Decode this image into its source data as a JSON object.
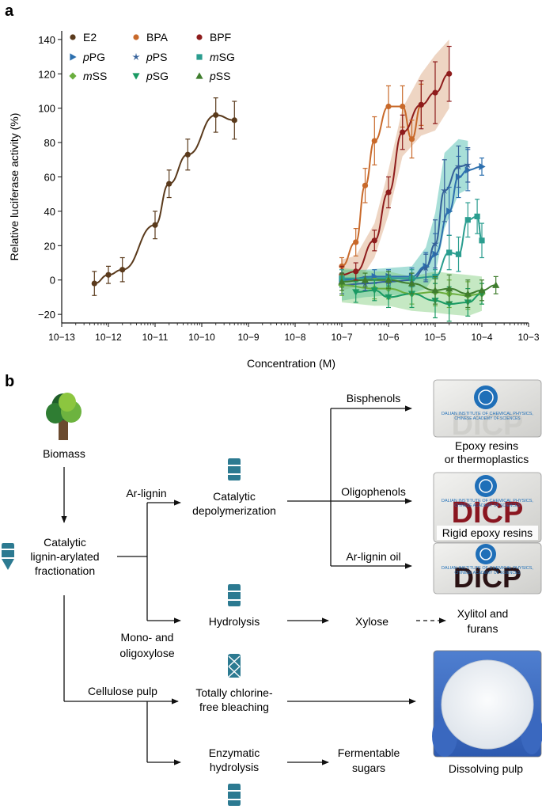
{
  "panel_a_label": "a",
  "panel_b_label": "b",
  "chart_data": {
    "type": "scatter",
    "xscale": "log",
    "xlabel": "Concentration (M)",
    "ylabel": "Relative luciferase activity (%)",
    "xlim_exp": [
      -13,
      -3
    ],
    "ylim": [
      -25,
      145
    ],
    "yticks": [
      -20,
      0,
      20,
      40,
      60,
      80,
      100,
      120,
      140
    ],
    "xtick_labels": [
      "10−13",
      "10−12",
      "10−11",
      "10−10",
      "10−9",
      "10−8",
      "10−7",
      "10−6",
      "10−5",
      "10−4",
      "10−3"
    ],
    "legend_position": "top-left",
    "series": [
      {
        "name": "E2",
        "marker": "circle",
        "color": "#5a3a1c",
        "x_log": [
          -12.3,
          -12.0,
          -11.7,
          -11.0,
          -10.7,
          -10.3,
          -9.7,
          -9.3
        ],
        "y": [
          -2,
          3,
          6,
          32,
          56,
          73,
          96,
          93
        ],
        "err": [
          7,
          5,
          7,
          8,
          8,
          9,
          10,
          11
        ]
      },
      {
        "name": "BPA",
        "marker": "circle",
        "color": "#c8692a",
        "x_log": [
          -7.0,
          -6.7,
          -6.5,
          -6.3,
          -6.0,
          -5.7,
          -5.5,
          -5.3
        ],
        "y": [
          8,
          22,
          55,
          81,
          101,
          101,
          82,
          102
        ],
        "err": [
          5,
          8,
          10,
          14,
          12,
          12,
          11,
          12
        ]
      },
      {
        "name": "BPF",
        "marker": "circle",
        "color": "#8e1c1c",
        "x_log": [
          -7.0,
          -6.7,
          -6.3,
          -6.0,
          -5.7,
          -5.3,
          -5.0,
          -4.7
        ],
        "y": [
          3,
          5,
          23,
          51,
          86,
          102,
          109,
          120
        ],
        "err": [
          5,
          5,
          6,
          9,
          10,
          14,
          18,
          16
        ]
      },
      {
        "name": "pPG",
        "marker": "triangle-right",
        "color": "#2c6fae",
        "x_log": [
          -7.0,
          -6.3,
          -6.0,
          -5.5,
          -5.2,
          -5.0,
          -4.7,
          -4.5,
          -4.3,
          -4.0
        ],
        "y": [
          0,
          2,
          2,
          2,
          8,
          15,
          40,
          60,
          64,
          66
        ],
        "err": [
          4,
          4,
          4,
          5,
          8,
          12,
          14,
          12,
          12,
          5
        ]
      },
      {
        "name": "pPS",
        "marker": "star",
        "color": "#35619a",
        "x_log": [
          -7.0,
          -6.5,
          -6.0,
          -5.5,
          -5.2,
          -5.0,
          -4.8,
          -4.5,
          -4.3
        ],
        "y": [
          -3,
          -2,
          -1,
          0,
          7,
          21,
          52,
          66,
          67
        ],
        "err": [
          5,
          4,
          4,
          4,
          8,
          14,
          18,
          12,
          10
        ]
      },
      {
        "name": "mSG",
        "marker": "square",
        "color": "#2a9d8f",
        "x_log": [
          -7.0,
          -6.0,
          -5.5,
          -5.0,
          -4.7,
          -4.5,
          -4.3,
          -4.1,
          -4.0
        ],
        "y": [
          1,
          1,
          1,
          2,
          16,
          15,
          35,
          37,
          23
        ],
        "err": [
          5,
          4,
          5,
          4,
          10,
          10,
          10,
          10,
          10
        ]
      },
      {
        "name": "mSS",
        "marker": "diamond",
        "color": "#6aae3e",
        "x_log": [
          -7.0,
          -6.3,
          -6.0,
          -5.5,
          -5.0,
          -4.7,
          -4.3,
          -4.0
        ],
        "y": [
          -3,
          -5,
          -5,
          -8,
          -7,
          -8,
          -9,
          -8
        ],
        "err": [
          6,
          6,
          6,
          6,
          8,
          8,
          8,
          6
        ]
      },
      {
        "name": "pSG",
        "marker": "triangle-down",
        "color": "#1a9a63",
        "x_log": [
          -6.7,
          -6.3,
          -6.0,
          -5.5,
          -5.0,
          -4.7,
          -4.3,
          -4.0
        ],
        "y": [
          -7,
          -6,
          -10,
          -8,
          -12,
          -14,
          -13,
          -8
        ],
        "err": [
          6,
          6,
          6,
          8,
          10,
          10,
          8,
          6
        ]
      },
      {
        "name": "pSS",
        "marker": "triangle-up",
        "color": "#3f7d2d",
        "x_log": [
          -7.0,
          -6.5,
          -6.0,
          -5.5,
          -5.0,
          -4.7,
          -4.3,
          -4.0,
          -3.7
        ],
        "y": [
          -1,
          0,
          0,
          -2,
          -6,
          -5,
          -8,
          -6,
          -3
        ],
        "err": [
          5,
          4,
          5,
          6,
          8,
          8,
          8,
          6,
          5
        ]
      }
    ]
  },
  "flow": {
    "biomass": "Biomass",
    "fractionation": [
      "Catalytic",
      "lignin-arylated",
      "fractionation"
    ],
    "ar_lignin": "Ar-lignin",
    "mono_oligoxylose": [
      "Mono- and",
      "oligoxylose"
    ],
    "cellulose_pulp": "Cellulose pulp",
    "depolymerization": [
      "Catalytic",
      "depolymerization"
    ],
    "hydrolysis": "Hydrolysis",
    "bleaching": [
      "Totally chlorine-",
      "free bleaching"
    ],
    "enzymatic": [
      "Enzymatic",
      "hydrolysis"
    ],
    "bisphenols": "Bisphenols",
    "oligophenols": "Oligophenols",
    "ar_lignin_oil": "Ar-lignin oil",
    "xylose": "Xylose",
    "xylitol": [
      "Xylitol and",
      "furans"
    ],
    "fermentable": [
      "Fermentable",
      "sugars"
    ],
    "epoxy_caption": [
      "Epoxy resins",
      "or thermoplastics"
    ],
    "rigid_caption": "Rigid epoxy resins",
    "pulp_caption": "Dissolving pulp",
    "logo_text": "DICP",
    "institute_line1": "DALIAN INSTITUTE OF CHEMICAL PHYSICS,",
    "institute_line2": "CHINESE ACADEMY OF SCIENCES"
  }
}
